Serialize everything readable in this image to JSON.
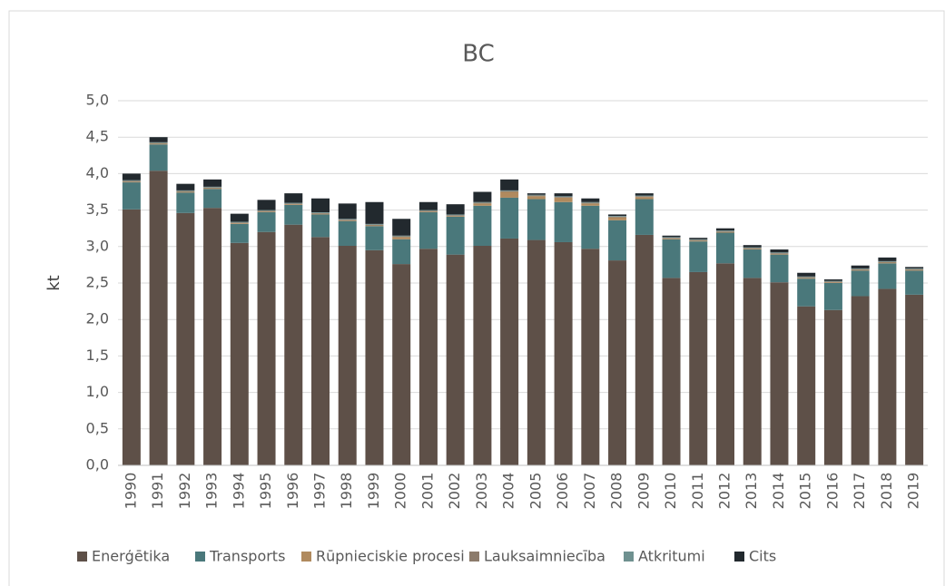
{
  "chart_data": {
    "type": "stacked_bar",
    "title": "BC",
    "y_label": "kt",
    "categories": [
      "1990",
      "1991",
      "1992",
      "1993",
      "1994",
      "1995",
      "1996",
      "1997",
      "1998",
      "1999",
      "2000",
      "2001",
      "2002",
      "2003",
      "2004",
      "2005",
      "2006",
      "2007",
      "2008",
      "2009",
      "2010",
      "2011",
      "2012",
      "2013",
      "2014",
      "2015",
      "2016",
      "2017",
      "2018",
      "2019"
    ],
    "series": [
      {
        "name": "Enerģētika",
        "color": "#5e5048",
        "values": [
          3.51,
          4.04,
          3.46,
          3.53,
          3.05,
          3.2,
          3.3,
          3.13,
          3.01,
          2.95,
          2.76,
          2.97,
          2.89,
          3.01,
          3.11,
          3.09,
          3.06,
          2.97,
          2.81,
          3.16,
          2.57,
          2.65,
          2.77,
          2.57,
          2.51,
          2.18,
          2.13,
          2.32,
          2.42,
          2.34
        ]
      },
      {
        "name": "Transports",
        "color": "#4a787b",
        "values": [
          0.37,
          0.36,
          0.28,
          0.26,
          0.26,
          0.27,
          0.27,
          0.31,
          0.34,
          0.33,
          0.34,
          0.5,
          0.52,
          0.55,
          0.56,
          0.56,
          0.55,
          0.59,
          0.55,
          0.49,
          0.53,
          0.42,
          0.42,
          0.39,
          0.38,
          0.38,
          0.37,
          0.35,
          0.35,
          0.33
        ]
      },
      {
        "name": "Rūpnieciskie procesi",
        "color": "#b08a5e",
        "values": [
          0.01,
          0.01,
          0.01,
          0.01,
          0.01,
          0.01,
          0.01,
          0.01,
          0.01,
          0.01,
          0.03,
          0.01,
          0.01,
          0.03,
          0.08,
          0.04,
          0.06,
          0.03,
          0.04,
          0.03,
          0.01,
          0.01,
          0.01,
          0.01,
          0.01,
          0.01,
          0.01,
          0.01,
          0.01,
          0.01
        ]
      },
      {
        "name": "Lauksaimniecība",
        "color": "#8c7b6b",
        "values": [
          0.01,
          0.01,
          0.01,
          0.01,
          0.01,
          0.01,
          0.01,
          0.01,
          0.01,
          0.01,
          0.01,
          0.01,
          0.01,
          0.01,
          0.01,
          0.01,
          0.01,
          0.01,
          0.01,
          0.01,
          0.01,
          0.01,
          0.01,
          0.01,
          0.01,
          0.01,
          0.01,
          0.01,
          0.01,
          0.01
        ]
      },
      {
        "name": "Atkritumi",
        "color": "#6f9190",
        "values": [
          0.01,
          0.01,
          0.01,
          0.01,
          0.01,
          0.01,
          0.01,
          0.01,
          0.01,
          0.01,
          0.01,
          0.01,
          0.01,
          0.01,
          0.01,
          0.01,
          0.01,
          0.01,
          0.01,
          0.01,
          0.01,
          0.01,
          0.01,
          0.01,
          0.01,
          0.01,
          0.01,
          0.01,
          0.01,
          0.01
        ]
      },
      {
        "name": "Cits",
        "color": "#22292e",
        "values": [
          0.09,
          0.07,
          0.09,
          0.1,
          0.11,
          0.14,
          0.13,
          0.19,
          0.21,
          0.3,
          0.23,
          0.11,
          0.14,
          0.14,
          0.15,
          0.02,
          0.04,
          0.05,
          0.02,
          0.03,
          0.02,
          0.02,
          0.03,
          0.03,
          0.04,
          0.05,
          0.02,
          0.04,
          0.05,
          0.02
        ]
      }
    ],
    "ylim": [
      0,
      5
    ],
    "yticks": [
      {
        "value": 0,
        "label": "0,0"
      },
      {
        "value": 0.5,
        "label": "0,5"
      },
      {
        "value": 1,
        "label": "1,0"
      },
      {
        "value": 1.5,
        "label": "1,5"
      },
      {
        "value": 2,
        "label": "2,0"
      },
      {
        "value": 2.5,
        "label": "2,5"
      },
      {
        "value": 3,
        "label": "3,0"
      },
      {
        "value": 3.5,
        "label": "3,5"
      },
      {
        "value": 4,
        "label": "4,0"
      },
      {
        "value": 4.5,
        "label": "4,5"
      },
      {
        "value": 5,
        "label": "5,0"
      }
    ],
    "grid": true,
    "legend": "bottom"
  }
}
